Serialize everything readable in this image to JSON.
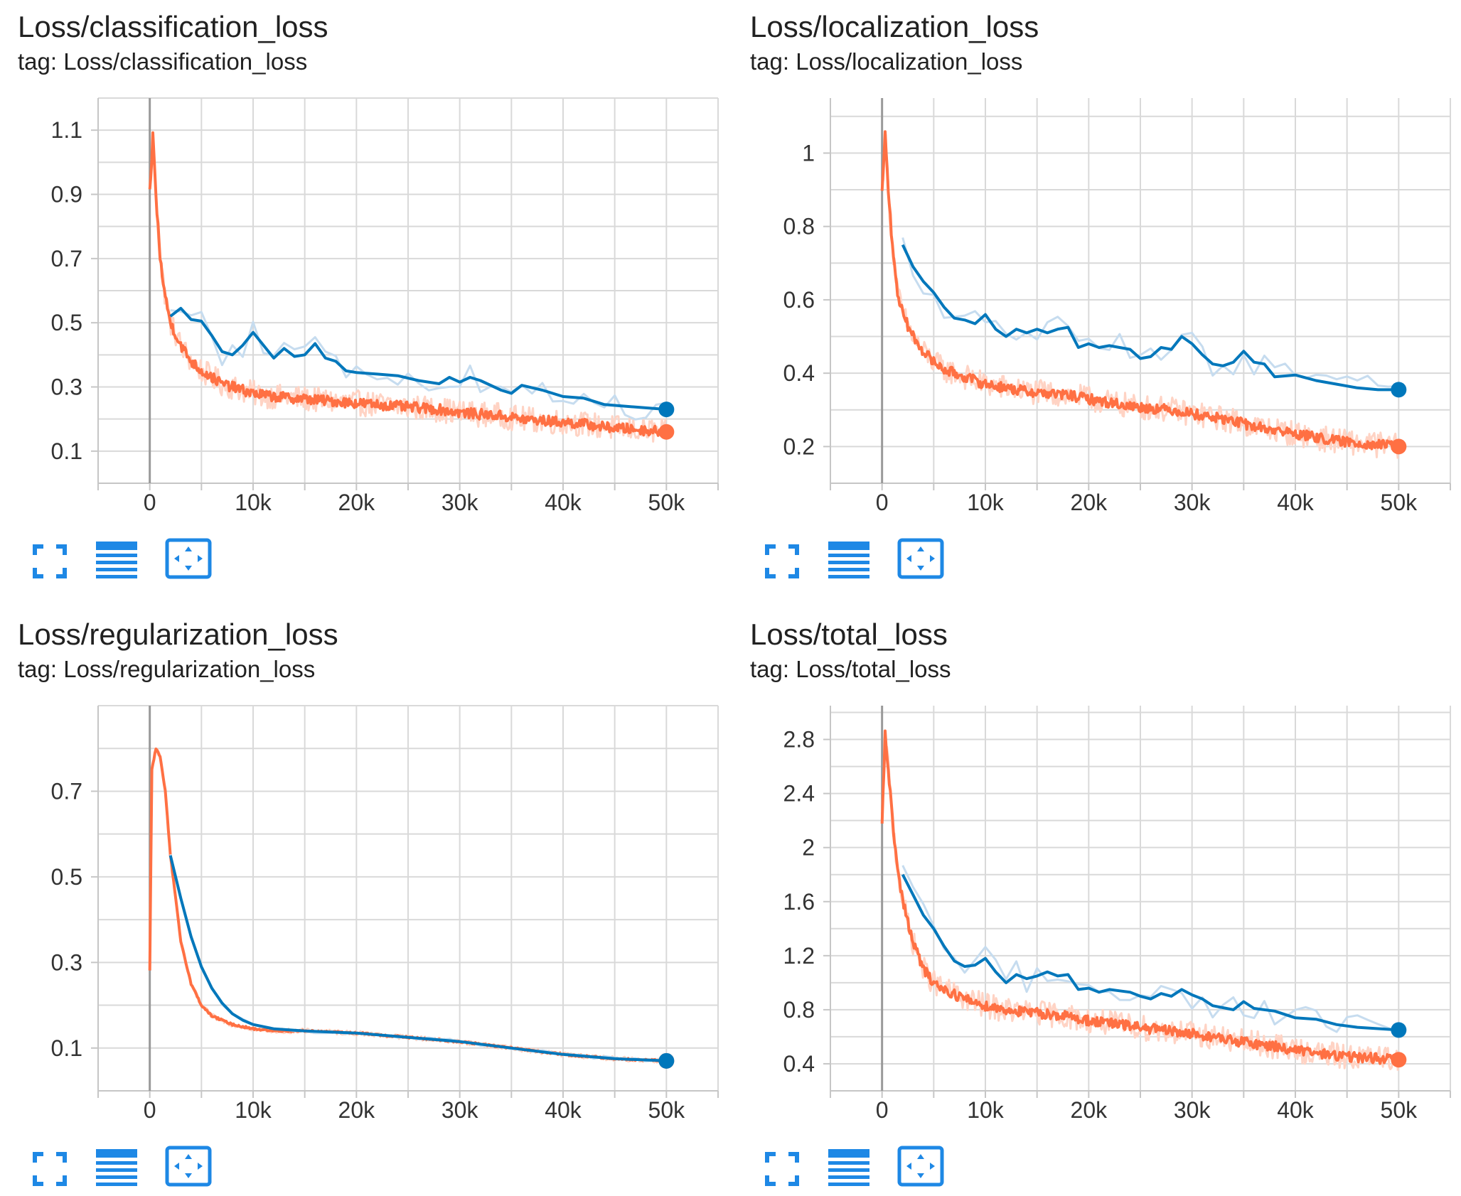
{
  "colors": {
    "blue": "#0077bb",
    "blue_raw": "#c6dcef",
    "orange": "#ff7043",
    "orange_raw": "#ffd3c4",
    "toolbar_icon": "#1e88e5"
  },
  "toolbar_icons": [
    "fullscreen-icon",
    "data-table-icon",
    "fit-domain-icon"
  ],
  "cards": [
    {
      "title": "Loss/classification_loss",
      "tag": "tag: Loss/classification_loss",
      "chart_data": {
        "type": "line",
        "title": "Loss/classification_loss",
        "xlim": [
          -5000,
          55000
        ],
        "ylim": [
          0.0,
          1.2
        ],
        "x_ticks": [
          0,
          10000,
          20000,
          30000,
          40000,
          50000
        ],
        "x_tick_labels": [
          "0",
          "10k",
          "20k",
          "30k",
          "40k",
          "50k"
        ],
        "y_ticks": [
          0.1,
          0.3,
          0.5,
          0.7,
          0.9,
          1.1
        ],
        "y_tick_labels": [
          "0.1",
          "0.3",
          "0.5",
          "0.7",
          "0.9",
          "1.1"
        ],
        "grid": true,
        "series": [
          {
            "color": "#ff7043",
            "raw_color": "#ffd3c4",
            "x": [
              0,
              300,
              600,
              1000,
              1500,
              2000,
              3000,
              4000,
              5000,
              6000,
              7000,
              8000,
              10000,
              12000,
              14000,
              16000,
              18000,
              20000,
              22000,
              24000,
              26000,
              28000,
              30000,
              32000,
              34000,
              36000,
              38000,
              40000,
              42000,
              44000,
              46000,
              48000,
              50000
            ],
            "y": [
              0.9,
              1.08,
              0.9,
              0.7,
              0.58,
              0.5,
              0.43,
              0.38,
              0.35,
              0.33,
              0.31,
              0.3,
              0.28,
              0.27,
              0.265,
              0.26,
              0.255,
              0.25,
              0.245,
              0.24,
              0.235,
              0.23,
              0.22,
              0.215,
              0.21,
              0.2,
              0.195,
              0.19,
              0.185,
              0.175,
              0.17,
              0.165,
              0.16
            ]
          },
          {
            "color": "#0077bb",
            "raw_color": "#c6dcef",
            "x": [
              2000,
              3000,
              4000,
              5000,
              6000,
              7000,
              8000,
              9000,
              10000,
              11000,
              12000,
              13000,
              14000,
              15000,
              16000,
              17000,
              18000,
              19000,
              20000,
              22000,
              24000,
              26000,
              28000,
              29000,
              30000,
              31000,
              32000,
              34000,
              35000,
              36000,
              38000,
              40000,
              42000,
              44000,
              46000,
              48000,
              50000
            ],
            "y": [
              0.52,
              0.545,
              0.51,
              0.505,
              0.46,
              0.41,
              0.4,
              0.43,
              0.47,
              0.43,
              0.39,
              0.42,
              0.395,
              0.4,
              0.435,
              0.39,
              0.38,
              0.35,
              0.345,
              0.34,
              0.335,
              0.32,
              0.31,
              0.33,
              0.315,
              0.33,
              0.32,
              0.29,
              0.28,
              0.305,
              0.29,
              0.27,
              0.265,
              0.245,
              0.24,
              0.235,
              0.23
            ]
          }
        ]
      }
    },
    {
      "title": "Loss/localization_loss",
      "tag": "tag: Loss/localization_loss",
      "chart_data": {
        "type": "line",
        "title": "Loss/localization_loss",
        "xlim": [
          -5000,
          55000
        ],
        "ylim": [
          0.1,
          1.15
        ],
        "x_ticks": [
          0,
          10000,
          20000,
          30000,
          40000,
          50000
        ],
        "x_tick_labels": [
          "0",
          "10k",
          "20k",
          "30k",
          "40k",
          "50k"
        ],
        "y_ticks": [
          0.2,
          0.4,
          0.6,
          0.8,
          1.0
        ],
        "y_tick_labels": [
          "0.2",
          "0.4",
          "0.6",
          "0.8",
          "1"
        ],
        "grid": true,
        "series": [
          {
            "color": "#ff7043",
            "raw_color": "#ffd3c4",
            "x": [
              0,
              300,
              600,
              1000,
              1500,
              2000,
              3000,
              4000,
              5000,
              6000,
              8000,
              10000,
              12000,
              14000,
              16000,
              18000,
              20000,
              22000,
              24000,
              26000,
              28000,
              30000,
              32000,
              34000,
              36000,
              38000,
              40000,
              42000,
              44000,
              46000,
              48000,
              50000
            ],
            "y": [
              0.9,
              1.05,
              0.9,
              0.75,
              0.62,
              0.56,
              0.5,
              0.46,
              0.43,
              0.41,
              0.39,
              0.37,
              0.36,
              0.35,
              0.345,
              0.34,
              0.33,
              0.32,
              0.31,
              0.305,
              0.3,
              0.29,
              0.28,
              0.27,
              0.255,
              0.245,
              0.235,
              0.225,
              0.215,
              0.21,
              0.205,
              0.2
            ]
          },
          {
            "color": "#0077bb",
            "raw_color": "#c6dcef",
            "x": [
              2000,
              3000,
              4000,
              5000,
              6000,
              7000,
              8000,
              9000,
              10000,
              11000,
              12000,
              13000,
              14000,
              15000,
              16000,
              17000,
              18000,
              19000,
              20000,
              21000,
              22000,
              23000,
              24000,
              25000,
              26000,
              27000,
              28000,
              29000,
              30000,
              31000,
              32000,
              33000,
              34000,
              35000,
              36000,
              37000,
              38000,
              40000,
              42000,
              44000,
              46000,
              48000,
              50000
            ],
            "y": [
              0.75,
              0.69,
              0.65,
              0.62,
              0.58,
              0.55,
              0.545,
              0.535,
              0.56,
              0.52,
              0.5,
              0.52,
              0.51,
              0.52,
              0.51,
              0.52,
              0.525,
              0.47,
              0.48,
              0.47,
              0.475,
              0.47,
              0.465,
              0.44,
              0.445,
              0.47,
              0.465,
              0.5,
              0.48,
              0.45,
              0.425,
              0.42,
              0.43,
              0.46,
              0.43,
              0.425,
              0.39,
              0.395,
              0.38,
              0.37,
              0.36,
              0.355,
              0.355
            ]
          }
        ]
      }
    },
    {
      "title": "Loss/regularization_loss",
      "tag": "tag: Loss/regularization_loss",
      "chart_data": {
        "type": "line",
        "title": "Loss/regularization_loss",
        "xlim": [
          -5000,
          55000
        ],
        "ylim": [
          0.0,
          0.9
        ],
        "x_ticks": [
          0,
          10000,
          20000,
          30000,
          40000,
          50000
        ],
        "x_tick_labels": [
          "0",
          "10k",
          "20k",
          "30k",
          "40k",
          "50k"
        ],
        "y_ticks": [
          0.1,
          0.3,
          0.5,
          0.7
        ],
        "y_tick_labels": [
          "0.1",
          "0.3",
          "0.5",
          "0.7"
        ],
        "grid": true,
        "series": [
          {
            "color": "#ff7043",
            "raw_color": "#ffd3c4",
            "x": [
              0,
              200,
              600,
              1000,
              1500,
              2000,
              3000,
              4000,
              5000,
              6000,
              7000,
              8000,
              10000,
              12000,
              15000,
              20000,
              25000,
              30000,
              35000,
              40000,
              45000,
              50000
            ],
            "y": [
              0.28,
              0.75,
              0.8,
              0.78,
              0.7,
              0.55,
              0.35,
              0.25,
              0.2,
              0.175,
              0.165,
              0.155,
              0.145,
              0.14,
              0.14,
              0.135,
              0.125,
              0.115,
              0.1,
              0.085,
              0.075,
              0.07
            ]
          },
          {
            "color": "#0077bb",
            "raw_color": "#c6dcef",
            "x": [
              2000,
              3000,
              4000,
              5000,
              6000,
              7000,
              8000,
              9000,
              10000,
              12000,
              15000,
              20000,
              25000,
              30000,
              35000,
              40000,
              45000,
              50000
            ],
            "y": [
              0.55,
              0.45,
              0.36,
              0.29,
              0.24,
              0.205,
              0.18,
              0.165,
              0.155,
              0.145,
              0.14,
              0.135,
              0.125,
              0.115,
              0.1,
              0.085,
              0.075,
              0.07
            ]
          }
        ]
      }
    },
    {
      "title": "Loss/total_loss",
      "tag": "tag: Loss/total_loss",
      "chart_data": {
        "type": "line",
        "title": "Loss/total_loss",
        "xlim": [
          -5000,
          55000
        ],
        "ylim": [
          0.2,
          3.05
        ],
        "x_ticks": [
          0,
          10000,
          20000,
          30000,
          40000,
          50000
        ],
        "x_tick_labels": [
          "0",
          "10k",
          "20k",
          "30k",
          "40k",
          "50k"
        ],
        "y_ticks": [
          0.4,
          0.8,
          1.2,
          1.6,
          2.0,
          2.4,
          2.8
        ],
        "y_tick_labels": [
          "0.4",
          "0.8",
          "1.2",
          "1.6",
          "2",
          "2.4",
          "2.8"
        ],
        "grid": true,
        "series": [
          {
            "color": "#ff7043",
            "raw_color": "#ffd3c4",
            "x": [
              0,
              300,
              600,
              1000,
              1500,
              2000,
              3000,
              4000,
              5000,
              6000,
              8000,
              10000,
              12000,
              14000,
              16000,
              18000,
              20000,
              22000,
              24000,
              26000,
              28000,
              30000,
              32000,
              34000,
              36000,
              38000,
              40000,
              42000,
              44000,
              46000,
              48000,
              50000
            ],
            "y": [
              2.2,
              2.85,
              2.6,
              2.2,
              1.85,
              1.6,
              1.3,
              1.1,
              1.0,
              0.95,
              0.88,
              0.83,
              0.8,
              0.78,
              0.77,
              0.75,
              0.72,
              0.7,
              0.68,
              0.66,
              0.64,
              0.62,
              0.6,
              0.57,
              0.55,
              0.53,
              0.5,
              0.48,
              0.46,
              0.45,
              0.44,
              0.43
            ]
          },
          {
            "color": "#0077bb",
            "raw_color": "#c6dcef",
            "x": [
              2000,
              3000,
              4000,
              5000,
              6000,
              7000,
              8000,
              9000,
              10000,
              11000,
              12000,
              13000,
              14000,
              15000,
              16000,
              17000,
              18000,
              19000,
              20000,
              21000,
              22000,
              23000,
              24000,
              25000,
              26000,
              27000,
              28000,
              29000,
              30000,
              31000,
              32000,
              34000,
              35000,
              36000,
              38000,
              40000,
              42000,
              44000,
              46000,
              48000,
              50000
            ],
            "y": [
              1.8,
              1.65,
              1.5,
              1.4,
              1.27,
              1.16,
              1.12,
              1.13,
              1.18,
              1.08,
              1.0,
              1.06,
              1.03,
              1.05,
              1.08,
              1.05,
              1.06,
              0.95,
              0.96,
              0.93,
              0.95,
              0.94,
              0.93,
              0.9,
              0.88,
              0.92,
              0.9,
              0.95,
              0.91,
              0.88,
              0.83,
              0.8,
              0.86,
              0.81,
              0.79,
              0.74,
              0.73,
              0.69,
              0.67,
              0.66,
              0.65
            ]
          }
        ]
      }
    }
  ]
}
